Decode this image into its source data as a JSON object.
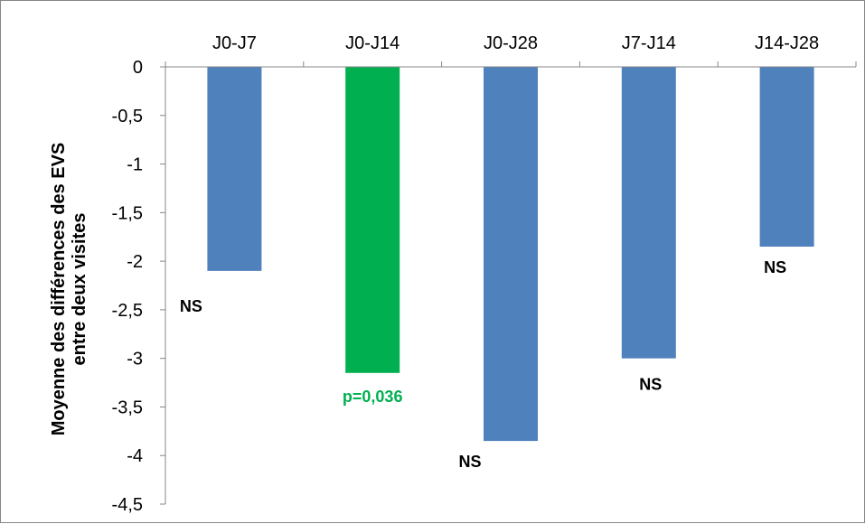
{
  "chart_data": {
    "type": "bar",
    "title": "",
    "xlabel": "",
    "ylabel": [
      "Moyenne des différences des EVS",
      "entre deux visites"
    ],
    "categories": [
      "J0-J7",
      "J0-J14",
      "J0-J28",
      "J7-J14",
      "J14-J28"
    ],
    "values": [
      -2.1,
      -3.15,
      -3.85,
      -3.0,
      -1.85
    ],
    "annotations": [
      "NS",
      "p=0,036",
      "NS",
      "NS",
      "NS"
    ],
    "ylim": [
      -4.5,
      0
    ],
    "yticks": [
      "0",
      "-0,5",
      "-1",
      "-1,5",
      "-2",
      "-2,5",
      "-3",
      "-3,5",
      "-4",
      "-4,5"
    ],
    "ytick_values": [
      0,
      -0.5,
      -1,
      -1.5,
      -2,
      -2.5,
      -3,
      -3.5,
      -4,
      -4.5
    ],
    "x_axis_position": "top",
    "grid": false,
    "legend": "none",
    "colors": {
      "default_bar": "#4F81BD",
      "highlight_bar": "#00B050",
      "significant_label": "#00B050",
      "ns_label": "#000000",
      "axis": "#868686"
    },
    "highlight_index": 1
  }
}
